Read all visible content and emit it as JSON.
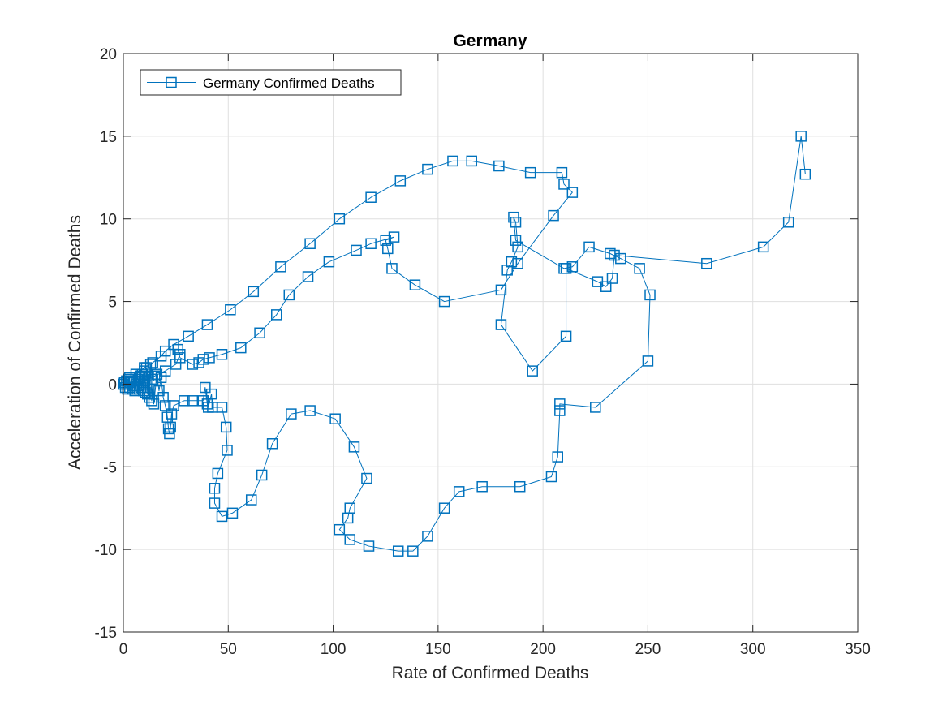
{
  "chart_data": {
    "type": "line",
    "title": "Germany",
    "xlabel": "Rate of Confirmed Deaths",
    "ylabel": "Acceleration of Confirmed Deaths",
    "xlim": [
      0,
      350
    ],
    "ylim": [
      -15,
      20
    ],
    "xticks": [
      0,
      50,
      100,
      150,
      200,
      250,
      300,
      350
    ],
    "yticks": [
      -15,
      -10,
      -5,
      0,
      5,
      10,
      15,
      20
    ],
    "grid": true,
    "legend_position": "top-left",
    "marker": "square",
    "series_color": "#0072bd",
    "series": [
      {
        "name": "Germany Confirmed Deaths",
        "points": [
          [
            0,
            0
          ],
          [
            0.5,
            0.1
          ],
          [
            1,
            -0.2
          ],
          [
            1.5,
            0.2
          ],
          [
            2,
            -0.3
          ],
          [
            2.5,
            0.3
          ],
          [
            3,
            -0.2
          ],
          [
            3.5,
            0.1
          ],
          [
            4,
            0.3
          ],
          [
            4.5,
            -0.3
          ],
          [
            5,
            0.2
          ],
          [
            5.5,
            -0.4
          ],
          [
            6,
            0.4
          ],
          [
            6.5,
            -0.1
          ],
          [
            7,
            0.3
          ],
          [
            7.5,
            -0.3
          ],
          [
            8,
            0.5
          ],
          [
            8.5,
            -0.2
          ],
          [
            9,
            0.6
          ],
          [
            9.5,
            -0.4
          ],
          [
            10,
            0.8
          ],
          [
            10.5,
            -0.5
          ],
          [
            11,
            1.0
          ],
          [
            11.5,
            -0.6
          ],
          [
            12,
            0.5
          ],
          [
            12.5,
            -0.8
          ],
          [
            13,
            1.2
          ],
          [
            13.5,
            -1.0
          ],
          [
            14,
            0.3
          ],
          [
            14.5,
            -1.2
          ],
          [
            16,
            0.6
          ],
          [
            17,
            -0.4
          ],
          [
            18,
            0.4
          ],
          [
            19,
            -0.8
          ],
          [
            20,
            -1.3
          ],
          [
            21,
            -2.0
          ],
          [
            21.5,
            -2.7
          ],
          [
            22,
            -3.0
          ],
          [
            22.5,
            -2.6
          ],
          [
            23,
            -1.8
          ],
          [
            24,
            -1.3
          ],
          [
            29,
            -1.0
          ],
          [
            33,
            -1.0
          ],
          [
            38,
            -1.0
          ],
          [
            39,
            -0.2
          ],
          [
            40,
            -1.2
          ],
          [
            40.5,
            -1.4
          ],
          [
            42,
            -0.6
          ],
          [
            42.5,
            -1.4
          ],
          [
            47,
            -1.4
          ],
          [
            49,
            -2.6
          ],
          [
            49.5,
            -4.0
          ],
          [
            45,
            -5.4
          ],
          [
            43.5,
            -6.3
          ],
          [
            43.5,
            -7.2
          ],
          [
            47,
            -8.0
          ],
          [
            52,
            -7.8
          ],
          [
            61,
            -7.0
          ],
          [
            66,
            -5.5
          ],
          [
            71,
            -3.6
          ],
          [
            80,
            -1.8
          ],
          [
            89,
            -1.6
          ],
          [
            101,
            -2.1
          ],
          [
            110,
            -3.8
          ],
          [
            116,
            -5.7
          ],
          [
            108,
            -7.5
          ],
          [
            107,
            -8.1
          ],
          [
            103,
            -8.8
          ],
          [
            108,
            -9.4
          ],
          [
            117,
            -9.8
          ],
          [
            131,
            -10.1
          ],
          [
            138,
            -10.1
          ],
          [
            145,
            -9.2
          ],
          [
            153,
            -7.5
          ],
          [
            160,
            -6.5
          ],
          [
            171,
            -6.2
          ],
          [
            189,
            -6.2
          ],
          [
            204,
            -5.6
          ],
          [
            207,
            -4.4
          ],
          [
            208,
            -1.6
          ],
          [
            208,
            -1.2
          ],
          [
            225,
            -1.4
          ],
          [
            250,
            1.4
          ],
          [
            251,
            5.4
          ],
          [
            246,
            7.0
          ],
          [
            237,
            7.6
          ],
          [
            232,
            7.9
          ],
          [
            222,
            8.3
          ],
          [
            214,
            7.1
          ],
          [
            210,
            7.0
          ],
          [
            187,
            8.7
          ],
          [
            186,
            10.1
          ],
          [
            187,
            9.8
          ],
          [
            188,
            8.3
          ],
          [
            185,
            7.4
          ],
          [
            183,
            6.9
          ],
          [
            180,
            3.6
          ],
          [
            195,
            0.8
          ],
          [
            211,
            2.9
          ],
          [
            211,
            7.0
          ],
          [
            226,
            6.2
          ],
          [
            230,
            5.9
          ],
          [
            233,
            6.4
          ],
          [
            234,
            7.8
          ],
          [
            278,
            7.3
          ],
          [
            305,
            8.3
          ],
          [
            317,
            9.8
          ],
          [
            323,
            15.0
          ],
          [
            325,
            12.7
          ]
        ]
      },
      {
        "name": "",
        "points": [
          [
            0,
            0
          ],
          [
            3,
            0.4
          ],
          [
            6,
            0.6
          ],
          [
            10,
            1.0
          ],
          [
            14,
            1.3
          ],
          [
            18,
            1.7
          ],
          [
            20,
            2.0
          ],
          [
            24,
            2.4
          ],
          [
            31,
            2.9
          ],
          [
            40,
            3.6
          ],
          [
            51,
            4.5
          ],
          [
            62,
            5.6
          ],
          [
            75,
            7.1
          ],
          [
            89,
            8.5
          ],
          [
            103,
            10.0
          ],
          [
            118,
            11.3
          ],
          [
            132,
            12.3
          ],
          [
            145,
            13.0
          ],
          [
            157,
            13.5
          ],
          [
            166,
            13.5
          ],
          [
            179,
            13.2
          ],
          [
            194,
            12.8
          ],
          [
            209,
            12.8
          ],
          [
            210,
            12.1
          ],
          [
            214,
            11.6
          ],
          [
            205,
            10.2
          ],
          [
            188,
            7.3
          ],
          [
            180,
            5.7
          ],
          [
            153,
            5.0
          ],
          [
            139,
            6.0
          ],
          [
            128,
            7.0
          ],
          [
            126,
            8.2
          ],
          [
            125,
            8.7
          ],
          [
            129,
            8.9
          ],
          [
            118,
            8.5
          ],
          [
            111,
            8.1
          ],
          [
            98,
            7.4
          ],
          [
            88,
            6.5
          ],
          [
            79,
            5.4
          ],
          [
            73,
            4.2
          ],
          [
            65,
            3.1
          ],
          [
            56,
            2.2
          ],
          [
            47,
            1.8
          ],
          [
            41,
            1.6
          ],
          [
            38,
            1.5
          ],
          [
            36,
            1.3
          ],
          [
            33,
            1.2
          ],
          [
            27,
            1.6
          ],
          [
            26,
            2.1
          ],
          [
            27,
            1.8
          ],
          [
            25,
            1.2
          ],
          [
            20,
            0.8
          ],
          [
            15,
            0.5
          ],
          [
            10,
            0.2
          ],
          [
            5,
            -0.1
          ],
          [
            0,
            0
          ]
        ]
      }
    ]
  }
}
